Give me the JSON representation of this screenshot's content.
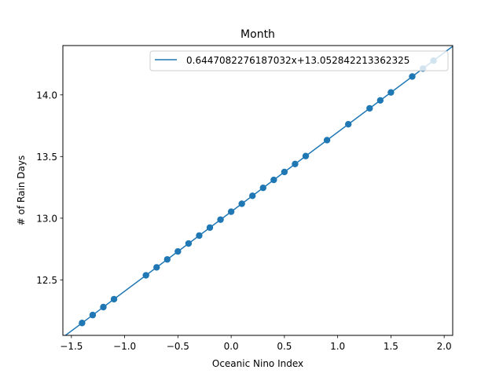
{
  "chart_data": {
    "type": "scatter",
    "title": "Month",
    "xlabel": "Oceanic Nino Index",
    "ylabel": "# of Rain Days",
    "xlim": [
      -1.58,
      2.08
    ],
    "ylim": [
      12.05,
      14.4
    ],
    "x_ticks": [
      -1.5,
      -1.0,
      -0.5,
      0.0,
      0.5,
      1.0,
      1.5,
      2.0
    ],
    "x_tick_labels": [
      "−1.5",
      "−1.0",
      "−0.5",
      "0.0",
      "0.5",
      "1.0",
      "1.5",
      "2.0"
    ],
    "y_ticks": [
      12.5,
      13.0,
      13.5,
      14.0
    ],
    "y_tick_labels": [
      "12.5",
      "13.0",
      "13.5",
      "14.0"
    ],
    "grid": false,
    "legend_position": "top-right",
    "color": "#1f77b4",
    "fit_line": {
      "label": "0.6447082276187032x+13.052842213362325",
      "slope": 0.6447082276187032,
      "intercept": 13.052842213362325
    },
    "points_x": [
      -1.4,
      -1.3,
      -1.2,
      -1.1,
      -0.8,
      -0.7,
      -0.6,
      -0.5,
      -0.4,
      -0.3,
      -0.2,
      -0.1,
      0.0,
      0.1,
      0.2,
      0.3,
      0.4,
      0.5,
      0.6,
      0.7,
      0.9,
      1.1,
      1.3,
      1.4,
      1.5,
      1.7,
      1.8,
      1.9
    ]
  }
}
